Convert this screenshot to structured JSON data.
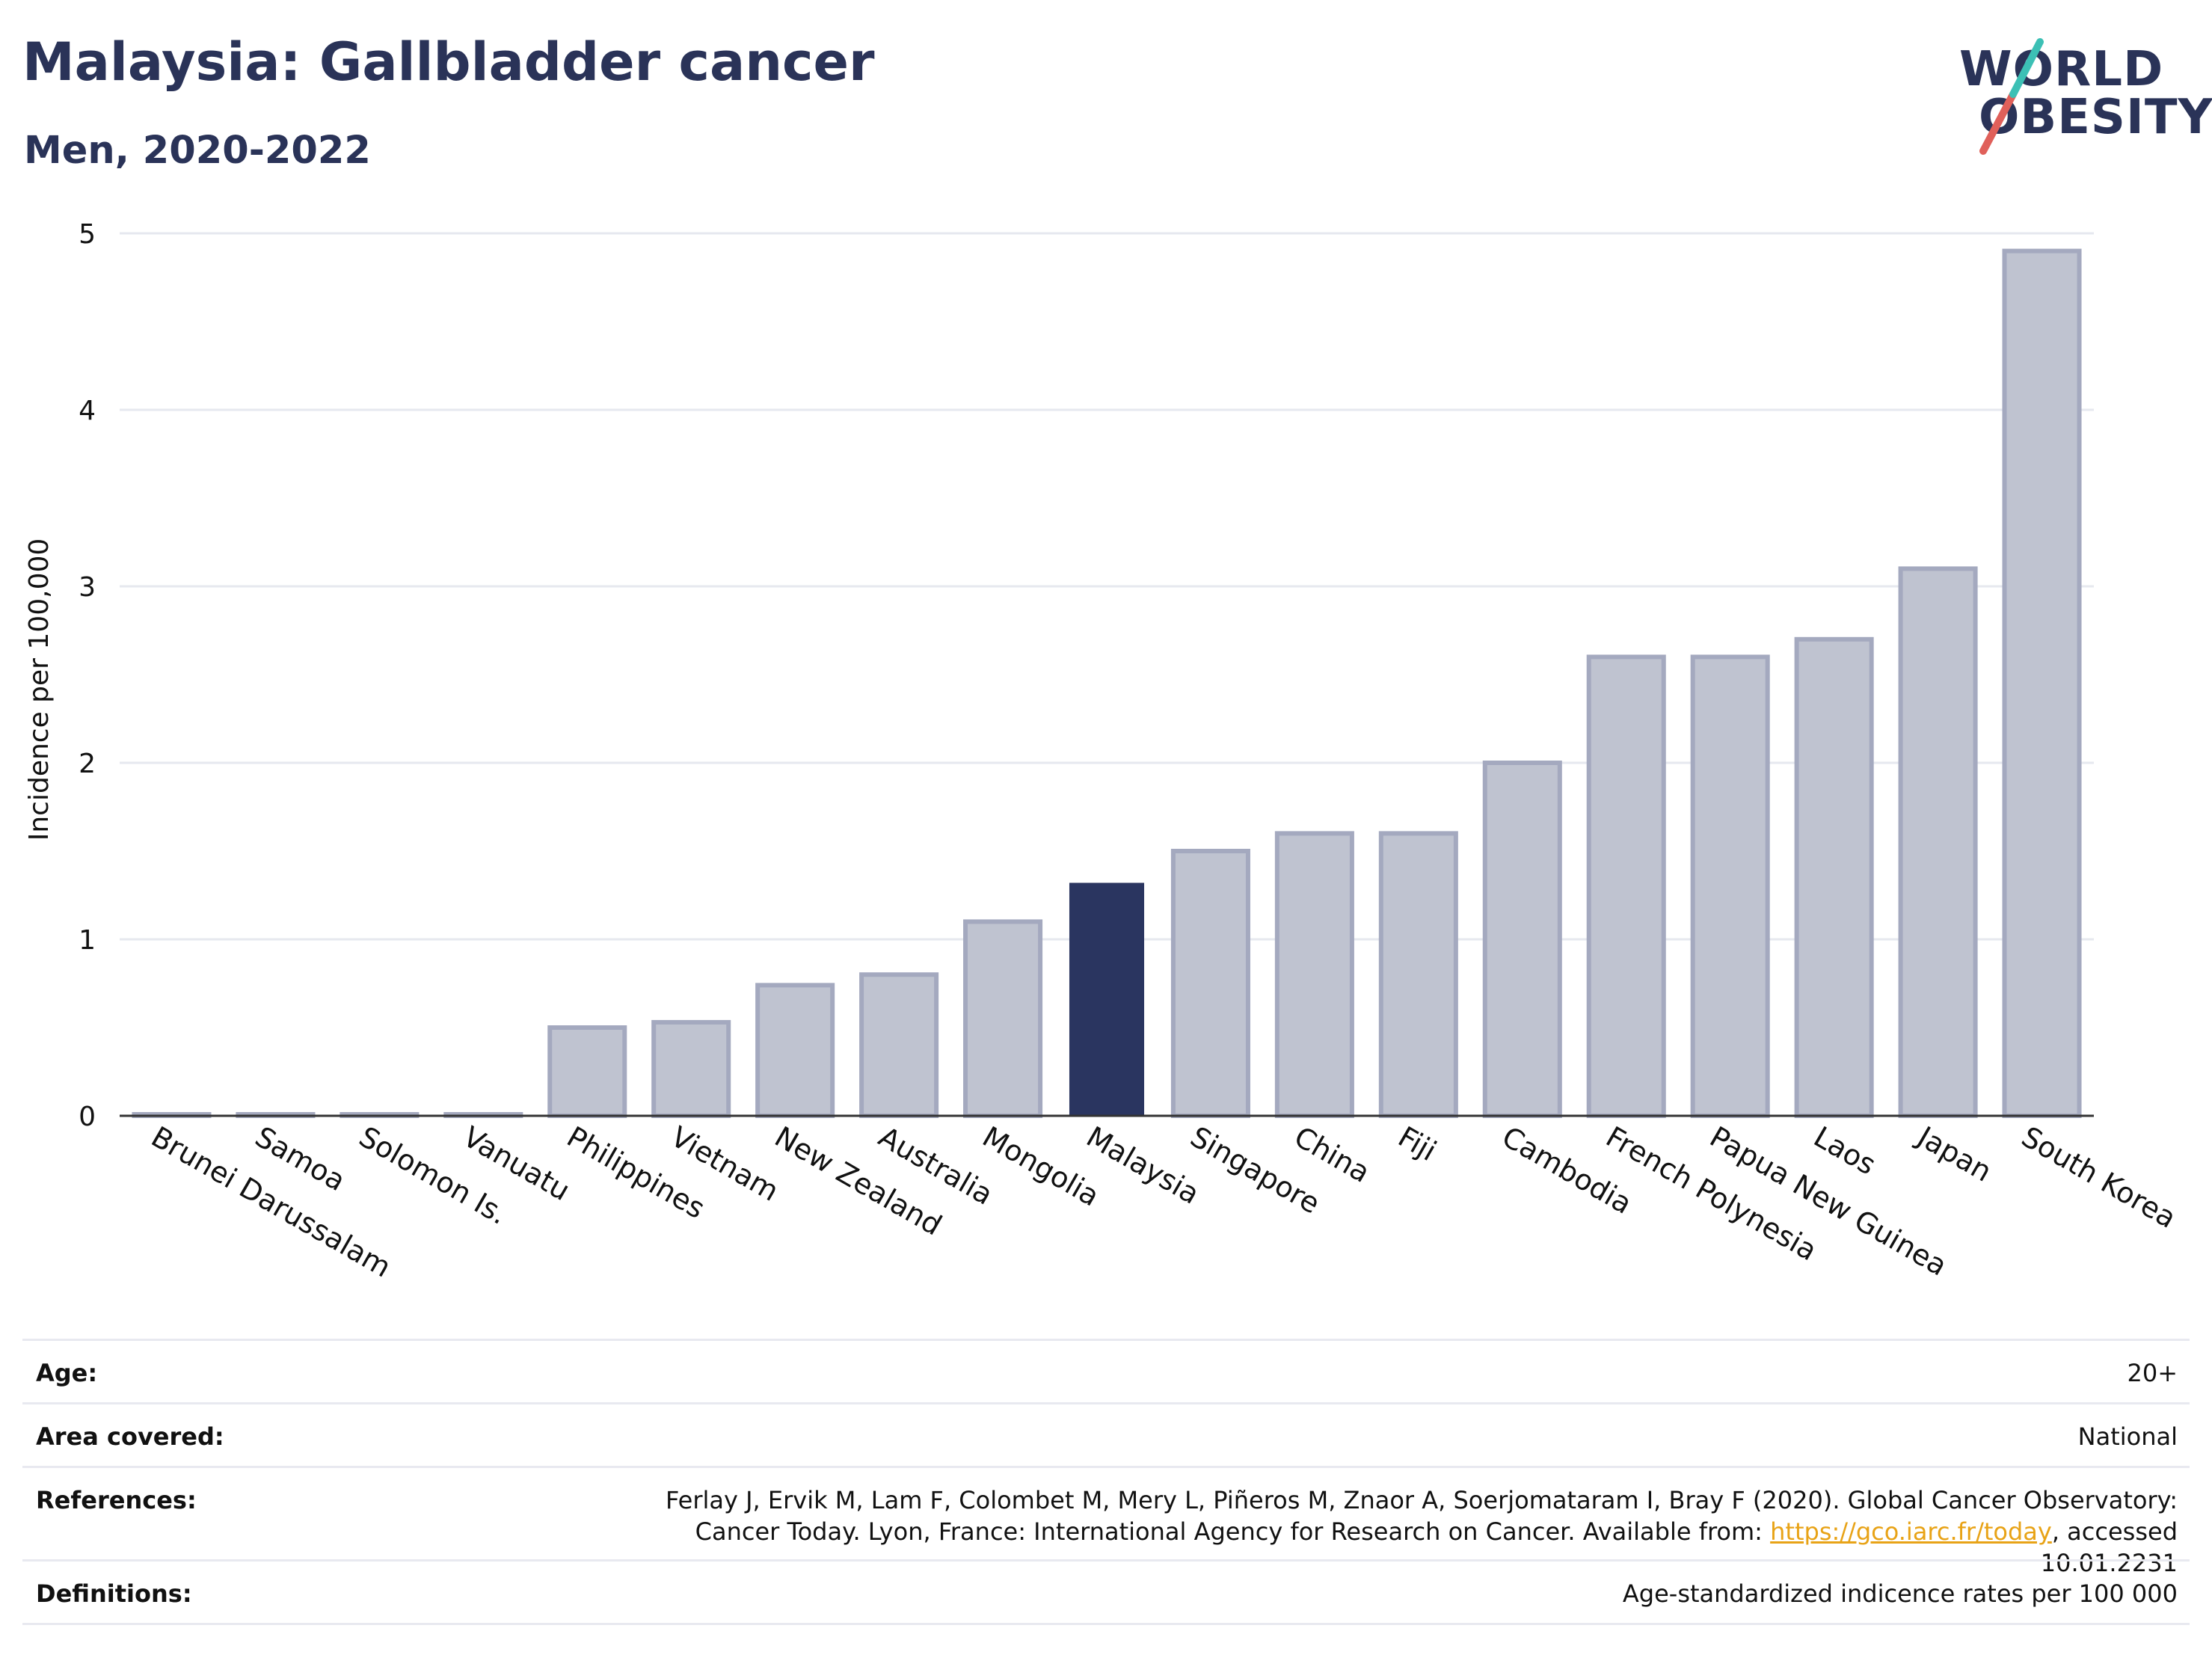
{
  "header": {
    "title": "Malaysia: Gallbladder cancer",
    "subtitle": "Men, 2020-2022"
  },
  "logo": {
    "line1": "WORLD",
    "line2": "OBESITY"
  },
  "chart_data": {
    "type": "bar",
    "title": "Malaysia: Gallbladder cancer",
    "subtitle": "Men, 2020-2022",
    "xlabel": "",
    "ylabel": "Incidence per 100,000",
    "ylim": [
      0,
      5
    ],
    "yticks": [
      0,
      1,
      2,
      3,
      4,
      5
    ],
    "grid": true,
    "highlight": "Malaysia",
    "highlight_color": "#2a3560",
    "bar_color": "#bfc3d0",
    "categories": [
      "Brunei Darussalam",
      "Samoa",
      "Solomon Is.",
      "Vanuatu",
      "Philippines",
      "Vietnam",
      "New Zealand",
      "Australia",
      "Mongolia",
      "Malaysia",
      "Singapore",
      "China",
      "Fiji",
      "Cambodia",
      "French Polynesia",
      "Papua New Guinea",
      "Laos",
      "Japan",
      "South Korea"
    ],
    "values": [
      0,
      0,
      0,
      0,
      0.5,
      0.53,
      0.74,
      0.8,
      1.1,
      1.32,
      1.5,
      1.6,
      1.6,
      2.0,
      2.6,
      2.6,
      2.7,
      3.1,
      4.9
    ]
  },
  "meta": {
    "age_label": "Age:",
    "age_value": "20+",
    "area_label": "Area covered:",
    "area_value": "National",
    "references_label": "References:",
    "references_text": "Ferlay J, Ervik M, Lam F, Colombet M, Mery L, Piñeros M, Znaor A, Soerjomataram I, Bray F (2020). Global Cancer Observatory: Cancer Today. Lyon, France: International Agency for Research on Cancer. Available from: ",
    "references_link": "https://gco.iarc.fr/today",
    "references_suffix": ", accessed 10.01.2231",
    "definitions_label": "Definitions:",
    "definitions_value": "Age-standardized indicence rates per 100 000"
  }
}
